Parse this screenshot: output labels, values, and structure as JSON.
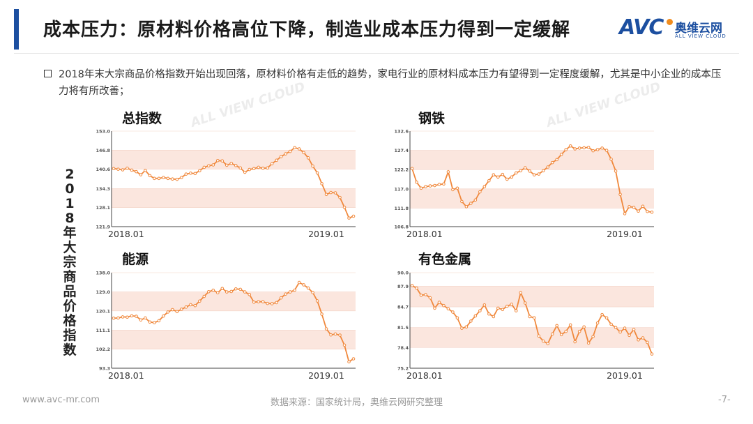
{
  "header": {
    "title": "成本压力：原材料价格高位下降，制造业成本压力得到一定缓解",
    "logo_main": "AVC",
    "logo_cn": "奥维云网",
    "logo_en": "ALL VIEW CLOUD"
  },
  "bullet": "2018年末大宗商品价格指数开始出现回落，原材料价格有走低的趋势，家电行业的原材料成本压力有望得到一定程度缓解，尤其是中小企业的成本压力将有所改善；",
  "side_label": "2018年大宗商品价格指数",
  "watermark": "ALL VIEW CLOUD",
  "footer": {
    "website": "www.avc-mr.com",
    "source": "数据来源：国家统计局，奥维云网研究整理",
    "page": "-7-"
  },
  "colors": {
    "accent": "#1c4fa0",
    "line": "#f0883c",
    "band": "#fbe6de"
  },
  "chart_data": [
    {
      "type": "line",
      "title": "总指数",
      "ylim": [
        121.9,
        153.0
      ],
      "yticks": [
        "153.0",
        "146.8",
        "140.6",
        "134.3",
        "128.1",
        "121.9"
      ],
      "xlabels": [
        "2018.01",
        "2019.01"
      ],
      "values": [
        140.8,
        140.6,
        140.4,
        140.9,
        140.3,
        139.8,
        138.8,
        140.2,
        138.5,
        137.6,
        137.6,
        137.9,
        137.6,
        137.4,
        137.3,
        137.9,
        139.0,
        139.3,
        139.2,
        140.1,
        141.2,
        141.7,
        142.0,
        143.4,
        143.3,
        141.9,
        142.5,
        141.8,
        141.0,
        139.6,
        140.5,
        140.8,
        141.2,
        140.9,
        141.0,
        142.4,
        143.5,
        144.7,
        145.6,
        146.4,
        147.6,
        147.2,
        146.0,
        144.3,
        141.6,
        139.4,
        135.9,
        132.4,
        133.0,
        132.9,
        131.4,
        128.2,
        124.7,
        125.3
      ]
    },
    {
      "type": "line",
      "title": "钢铁",
      "ylim": [
        106.8,
        132.6
      ],
      "yticks": [
        "132.6",
        "127.4",
        "122.2",
        "117.0",
        "111.8",
        "106.8"
      ],
      "xlabels": [
        "2018.01",
        "2019.01"
      ],
      "values": [
        122.5,
        118.8,
        117.2,
        117.6,
        117.8,
        117.9,
        118.2,
        118.3,
        121.6,
        116.8,
        117.2,
        113.6,
        112.2,
        113.1,
        114.0,
        116.2,
        117.6,
        119.2,
        120.8,
        120.2,
        120.9,
        119.6,
        120.2,
        121.3,
        121.9,
        122.7,
        121.8,
        120.8,
        121.0,
        121.9,
        122.9,
        124.1,
        124.9,
        126.3,
        127.6,
        128.6,
        127.8,
        128.0,
        128.1,
        128.2,
        127.3,
        127.6,
        128.0,
        127.4,
        125.0,
        121.8,
        115.5,
        110.3,
        112.2,
        112.0,
        111.0,
        112.3,
        110.9,
        110.7
      ]
    },
    {
      "type": "line",
      "title": "能源",
      "ylim": [
        93.3,
        138.0
      ],
      "yticks": [
        "138.0",
        "129.0",
        "120.1",
        "111.1",
        "102.2",
        "93.3"
      ],
      "xlabels": [
        "2018.01",
        "2019.01"
      ],
      "values": [
        116.7,
        116.8,
        117.3,
        117.2,
        117.8,
        117.6,
        115.9,
        116.8,
        114.9,
        114.6,
        115.5,
        117.7,
        119.6,
        120.7,
        119.8,
        120.9,
        121.9,
        123.0,
        122.6,
        124.7,
        126.9,
        129.1,
        129.8,
        128.6,
        130.6,
        129.0,
        129.2,
        130.4,
        130.2,
        129.0,
        127.8,
        124.2,
        124.4,
        124.4,
        123.6,
        123.5,
        124.0,
        126.2,
        128.0,
        129.0,
        129.8,
        133.4,
        132.3,
        130.8,
        128.7,
        124.8,
        118.6,
        111.7,
        108.9,
        109.3,
        108.8,
        104.1,
        96.3,
        97.7
      ]
    },
    {
      "type": "line",
      "title": "有色金属",
      "ylim": [
        75.2,
        90.0
      ],
      "yticks": [
        "90.0",
        "87.9",
        "84.7",
        "81.5",
        "78.4",
        "75.2"
      ],
      "xlabels": [
        "2018.01",
        "2019.01"
      ],
      "values": [
        88.0,
        87.6,
        86.5,
        86.6,
        86.1,
        84.5,
        85.4,
        84.9,
        84.4,
        83.9,
        83.0,
        81.4,
        81.6,
        82.5,
        83.3,
        84.1,
        85.0,
        83.6,
        83.2,
        84.5,
        84.3,
        84.8,
        85.1,
        84.1,
        86.9,
        85.3,
        83.2,
        83.0,
        80.2,
        79.4,
        79.0,
        80.5,
        81.8,
        80.4,
        80.9,
        81.9,
        79.3,
        80.9,
        81.6,
        79.1,
        80.1,
        82.2,
        83.5,
        83.0,
        82.0,
        81.5,
        80.8,
        81.4,
        80.3,
        81.2,
        79.6,
        79.9,
        79.2,
        77.4
      ]
    }
  ]
}
